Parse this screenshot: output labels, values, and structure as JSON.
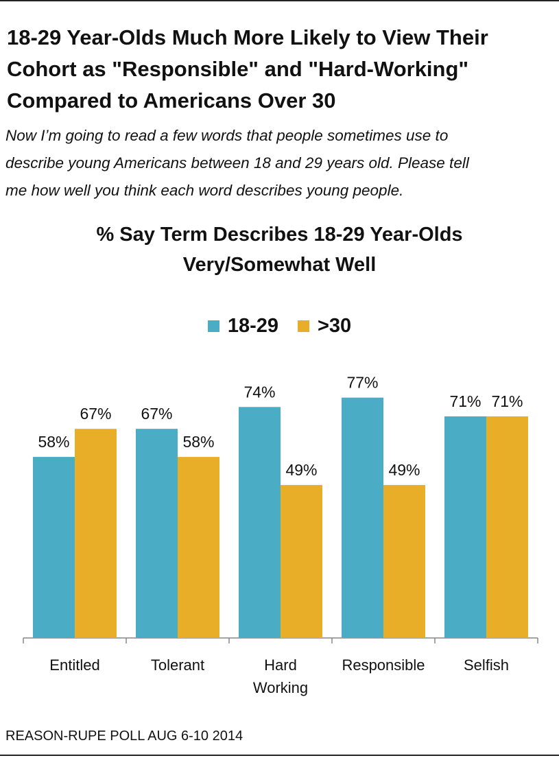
{
  "title_lines": [
    "18-29 Year-Olds Much More Likely to View Their",
    "Cohort as \"Responsible\" and \"Hard-Working\"",
    "Compared to Americans Over 30"
  ],
  "question_lines": [
    "Now I’m going to read a few words that people sometimes use to",
    "describe young Americans between 18 and 29 years old. Please tell",
    "me how well you think each word describes young people."
  ],
  "source": "REASON-RUPE POLL AUG 6-10 2014",
  "chart_data": {
    "type": "bar",
    "title_lines": [
      "% Say Term Describes 18-29 Year-Olds",
      "Very/Somewhat Well"
    ],
    "categories": [
      [
        "Entitled"
      ],
      [
        "Tolerant"
      ],
      [
        "Hard",
        "Working"
      ],
      [
        "Responsible"
      ],
      [
        "Selfish"
      ]
    ],
    "series": [
      {
        "name": "18-29",
        "color": "#4bacc6",
        "values": [
          58,
          67,
          74,
          77,
          71
        ],
        "labels": [
          "58%",
          "67%",
          "74%",
          "77%",
          "71%"
        ]
      },
      {
        "name": ">30",
        "color": "#e8ae28",
        "values": [
          67,
          58,
          49,
          49,
          71
        ],
        "labels": [
          "67%",
          "58%",
          "49%",
          "49%",
          "71%"
        ]
      }
    ],
    "ylim": [
      0,
      100
    ],
    "legend_position": "top-center",
    "grid": false,
    "axis_color": "#868686"
  }
}
